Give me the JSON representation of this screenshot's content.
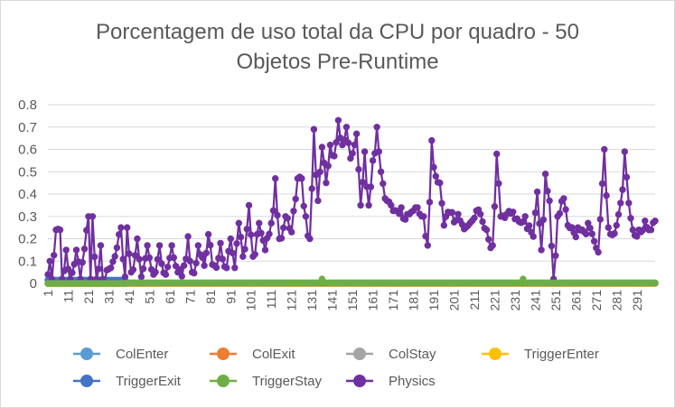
{
  "chart_data": {
    "type": "line",
    "title_line1": "Porcentagem de uso total da CPU por quadro - 50",
    "title_line2": "Objetos Pre-Runtime",
    "ylim": [
      0,
      0.8
    ],
    "y_ticks": [
      "0",
      "0.1",
      "0.2",
      "0.3",
      "0.4",
      "0.5",
      "0.6",
      "0.7",
      "0.8"
    ],
    "x_range": [
      1,
      300
    ],
    "x_ticks": [
      "1",
      "11",
      "21",
      "31",
      "41",
      "51",
      "61",
      "71",
      "81",
      "91",
      "101",
      "111",
      "121",
      "131",
      "141",
      "151",
      "161",
      "171",
      "181",
      "191",
      "201",
      "211",
      "221",
      "231",
      "241",
      "251",
      "261",
      "271",
      "281",
      "291"
    ],
    "grid": "horizontal",
    "legend_position": "bottom",
    "series": [
      {
        "name": "ColEnter",
        "color": "#5b9bd5",
        "values": "all zero"
      },
      {
        "name": "ColExit",
        "color": "#ed7d31",
        "values": "all zero"
      },
      {
        "name": "ColStay",
        "color": "#a5a5a5",
        "values": "all zero"
      },
      {
        "name": "TriggerEnter",
        "color": "#ffc000",
        "values": "all zero"
      },
      {
        "name": "TriggerExit",
        "color": "#4472c4",
        "values": "near zero"
      },
      {
        "name": "TriggerStay",
        "color": "#70ad47",
        "values": "near zero, small spikes of 0.02 at frames 136 and 235"
      },
      {
        "name": "Physics",
        "color": "#7030a0",
        "keypoints": [
          [
            1,
            0.04
          ],
          [
            2,
            0.1
          ],
          [
            3,
            0.02
          ],
          [
            5,
            0.24
          ],
          [
            7,
            0.24
          ],
          [
            8,
            0.02
          ],
          [
            10,
            0.15
          ],
          [
            12,
            0.02
          ],
          [
            15,
            0.15
          ],
          [
            17,
            0.02
          ],
          [
            21,
            0.3
          ],
          [
            22,
            0.02
          ],
          [
            23,
            0.3
          ],
          [
            25,
            0.02
          ],
          [
            27,
            0.17
          ],
          [
            28,
            0.02
          ],
          [
            32,
            0.07
          ],
          [
            35,
            0.16
          ],
          [
            37,
            0.25
          ],
          [
            39,
            0.03
          ],
          [
            40,
            0.25
          ],
          [
            42,
            0.05
          ],
          [
            45,
            0.2
          ],
          [
            47,
            0.03
          ],
          [
            50,
            0.17
          ],
          [
            53,
            0.04
          ],
          [
            56,
            0.17
          ],
          [
            59,
            0.04
          ],
          [
            62,
            0.17
          ],
          [
            65,
            0.05
          ],
          [
            68,
            0.08
          ],
          [
            70,
            0.21
          ],
          [
            72,
            0.05
          ],
          [
            75,
            0.17
          ],
          [
            78,
            0.08
          ],
          [
            80,
            0.22
          ],
          [
            83,
            0.08
          ],
          [
            86,
            0.18
          ],
          [
            89,
            0.07
          ],
          [
            91,
            0.2
          ],
          [
            93,
            0.07
          ],
          [
            95,
            0.27
          ],
          [
            97,
            0.12
          ],
          [
            100,
            0.35
          ],
          [
            102,
            0.12
          ],
          [
            105,
            0.27
          ],
          [
            108,
            0.15
          ],
          [
            111,
            0.27
          ],
          [
            113,
            0.47
          ],
          [
            115,
            0.2
          ],
          [
            118,
            0.3
          ],
          [
            121,
            0.23
          ],
          [
            124,
            0.47
          ],
          [
            126,
            0.47
          ],
          [
            128,
            0.3
          ],
          [
            130,
            0.2
          ],
          [
            132,
            0.69
          ],
          [
            134,
            0.37
          ],
          [
            136,
            0.61
          ],
          [
            138,
            0.45
          ],
          [
            140,
            0.62
          ],
          [
            142,
            0.57
          ],
          [
            144,
            0.73
          ],
          [
            146,
            0.62
          ],
          [
            148,
            0.7
          ],
          [
            150,
            0.56
          ],
          [
            153,
            0.67
          ],
          [
            155,
            0.35
          ],
          [
            157,
            0.59
          ],
          [
            159,
            0.35
          ],
          [
            161,
            0.55
          ],
          [
            163,
            0.7
          ],
          [
            165,
            0.5
          ],
          [
            167,
            0.38
          ],
          [
            170,
            0.35
          ],
          [
            175,
            0.34
          ],
          [
            178,
            0.31
          ],
          [
            180,
            0.32
          ],
          [
            183,
            0.34
          ],
          [
            186,
            0.3
          ],
          [
            188,
            0.17
          ],
          [
            190,
            0.64
          ],
          [
            192,
            0.48
          ],
          [
            194,
            0.45
          ],
          [
            196,
            0.26
          ],
          [
            198,
            0.32
          ],
          [
            203,
            0.31
          ],
          [
            208,
            0.26
          ],
          [
            213,
            0.33
          ],
          [
            217,
            0.24
          ],
          [
            220,
            0.17
          ],
          [
            222,
            0.58
          ],
          [
            224,
            0.3
          ],
          [
            230,
            0.32
          ],
          [
            236,
            0.3
          ],
          [
            240,
            0.21
          ],
          [
            242,
            0.41
          ],
          [
            244,
            0.15
          ],
          [
            246,
            0.49
          ],
          [
            248,
            0.37
          ],
          [
            250,
            0.02
          ],
          [
            252,
            0.3
          ],
          [
            255,
            0.38
          ],
          [
            257,
            0.26
          ],
          [
            262,
            0.25
          ],
          [
            267,
            0.27
          ],
          [
            272,
            0.14
          ],
          [
            275,
            0.6
          ],
          [
            277,
            0.25
          ],
          [
            281,
            0.26
          ],
          [
            284,
            0.42
          ],
          [
            285,
            0.59
          ],
          [
            287,
            0.36
          ],
          [
            289,
            0.24
          ],
          [
            292,
            0.24
          ],
          [
            295,
            0.28
          ],
          [
            298,
            0.24
          ],
          [
            300,
            0.28
          ]
        ]
      }
    ]
  }
}
